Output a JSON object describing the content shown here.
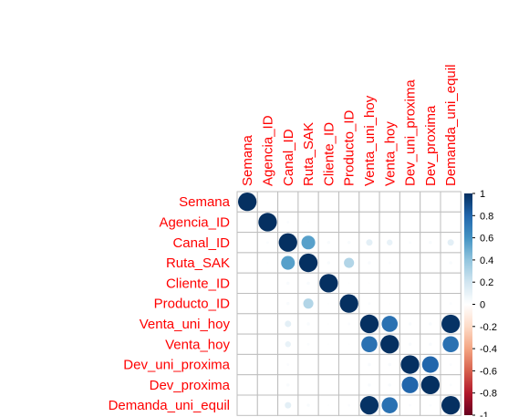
{
  "chart_data": {
    "type": "heatmap",
    "style": "corrplot-circle",
    "variables": [
      "Semana",
      "Agencia_ID",
      "Canal_ID",
      "Ruta_SAK",
      "Cliente_ID",
      "Producto_ID",
      "Venta_uni_hoy",
      "Venta_hoy",
      "Dev_uni_proxima",
      "Dev_proxima",
      "Demanda_uni_equil"
    ],
    "matrix": [
      [
        1.0,
        0.0,
        0.0,
        0.0,
        0.0,
        0.0,
        0.0,
        0.0,
        0.0,
        0.0,
        0.0
      ],
      [
        0.0,
        1.0,
        0.02,
        0.01,
        0.0,
        0.0,
        0.0,
        0.0,
        0.0,
        0.0,
        0.0
      ],
      [
        0.0,
        0.02,
        1.0,
        0.55,
        0.03,
        0.03,
        0.12,
        0.1,
        0.02,
        0.03,
        0.12
      ],
      [
        0.0,
        0.01,
        0.55,
        1.0,
        0.03,
        0.3,
        0.03,
        0.02,
        0.0,
        0.0,
        0.03
      ],
      [
        0.0,
        0.0,
        0.03,
        0.03,
        1.0,
        0.01,
        0.01,
        0.01,
        0.0,
        0.0,
        0.01
      ],
      [
        0.0,
        0.0,
        0.03,
        0.3,
        0.01,
        1.0,
        0.02,
        0.01,
        0.0,
        0.0,
        0.02
      ],
      [
        0.0,
        0.0,
        0.12,
        0.03,
        0.01,
        0.02,
        1.0,
        0.75,
        0.03,
        0.03,
        0.99
      ],
      [
        0.0,
        0.0,
        0.1,
        0.02,
        0.01,
        0.01,
        0.75,
        1.0,
        0.03,
        0.03,
        0.75
      ],
      [
        0.0,
        0.0,
        0.02,
        0.0,
        0.0,
        0.0,
        0.03,
        0.03,
        1.0,
        0.8,
        0.02
      ],
      [
        0.0,
        0.0,
        0.03,
        0.0,
        0.0,
        0.0,
        0.03,
        0.03,
        0.8,
        1.0,
        0.02
      ],
      [
        0.0,
        0.0,
        0.12,
        0.03,
        0.01,
        0.02,
        0.99,
        0.75,
        0.02,
        0.02,
        1.0
      ]
    ],
    "colorbar": {
      "ticks": [
        "1",
        "0.8",
        "0.6",
        "0.4",
        "0.2",
        "0",
        "-0.2",
        "-0.4",
        "-0.6",
        "-0.8",
        "-1"
      ],
      "range": [
        -1,
        1
      ]
    },
    "colors": {
      "label": "#ff0000",
      "grid": "#bebebe",
      "negative_end": "#67001f",
      "neutral": "#ffffff",
      "positive_end": "#053061"
    }
  }
}
